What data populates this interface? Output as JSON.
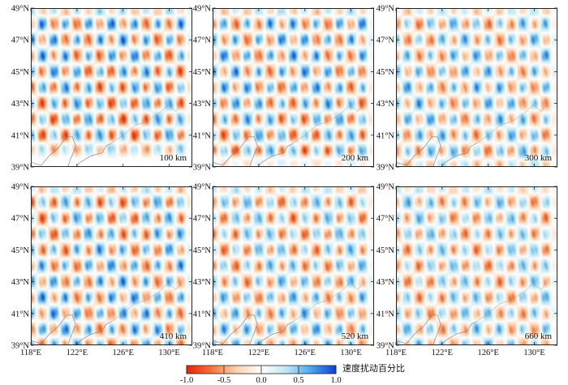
{
  "chart_data": {
    "type": "heatmap",
    "description_title": "速度扰动百分比",
    "panels": [
      {
        "label": "100 km",
        "depth_km": 100
      },
      {
        "label": "200 km",
        "depth_km": 200
      },
      {
        "label": "300 km",
        "depth_km": 300
      },
      {
        "label": "410 km",
        "depth_km": 410
      },
      {
        "label": "520 km",
        "depth_km": 520
      },
      {
        "label": "660 km",
        "depth_km": 660
      }
    ],
    "lon_range": [
      118,
      132
    ],
    "lat_range": [
      39,
      49
    ],
    "lon_ticks": [
      118,
      122,
      126,
      130
    ],
    "lon_tick_labels": [
      "118°E",
      "122°E",
      "126°E",
      "130°E"
    ],
    "lat_ticks": [
      39,
      41,
      43,
      45,
      47,
      49
    ],
    "lat_tick_labels": [
      "39°N",
      "41°N",
      "43°N",
      "45°N",
      "47°N",
      "49°N"
    ],
    "colorbar": {
      "title": "速度扰动百分比",
      "range": [
        -1.0,
        1.0
      ],
      "ticks": [
        -1.0,
        -0.5,
        0.0,
        0.5,
        1.0
      ],
      "tick_labels": [
        "-1.0",
        "-0.5",
        "0.0",
        "0.5",
        "1.0"
      ],
      "colors": [
        "#e8220c",
        "#f3743a",
        "#fbd2b0",
        "#ffffff",
        "#bfe7f2",
        "#4aa6ea",
        "#0d3fd8"
      ]
    },
    "checkerboard_cell_deg": 1.0,
    "amplitude": 1.0,
    "panel_recovery": [
      {
        "label": "100 km",
        "min_lat": 40.5,
        "strength": 0.95
      },
      {
        "label": "200 km",
        "min_lat": 40.0,
        "strength": 0.9
      },
      {
        "label": "300 km",
        "min_lat": 39.5,
        "strength": 0.8
      },
      {
        "label": "410 km",
        "min_lat": 39.0,
        "strength": 0.9
      },
      {
        "label": "520 km",
        "min_lat": 39.0,
        "strength": 0.8
      },
      {
        "label": "660 km",
        "min_lat": 39.0,
        "strength": 0.75
      }
    ]
  }
}
